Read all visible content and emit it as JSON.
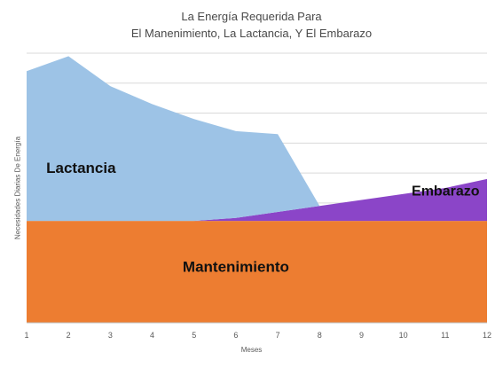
{
  "chart_data": {
    "type": "area",
    "stacked": true,
    "title": "La Energía Requerida Para",
    "subtitle": "El Manenimiento, La Lactancia, Y El Embarazo",
    "xlabel": "Meses",
    "ylabel": "Necesidades Diarias De Energía",
    "x": [
      1,
      2,
      3,
      4,
      5,
      6,
      7,
      8,
      9,
      10,
      11,
      12
    ],
    "ylim": [
      0,
      9
    ],
    "grid": true,
    "series": [
      {
        "name": "Mantenimiento",
        "values": [
          3.4,
          3.4,
          3.4,
          3.4,
          3.4,
          3.4,
          3.4,
          3.4,
          3.4,
          3.4,
          3.4,
          3.4
        ],
        "color": "#ED7D31"
      },
      {
        "name": "Embarazo",
        "values": [
          0,
          0,
          0,
          0,
          0,
          0.1,
          0.3,
          0.5,
          0.7,
          0.9,
          1.1,
          1.4
        ],
        "color": "#8B45C8"
      },
      {
        "name": "Lactancia",
        "values": [
          5.0,
          5.5,
          4.5,
          3.9,
          3.4,
          2.9,
          2.6,
          0,
          0,
          0,
          0,
          0
        ],
        "color": "#9DC3E6"
      }
    ],
    "area_labels": [
      "Mantenimiento",
      "Embarazo",
      "Lactancia"
    ]
  }
}
